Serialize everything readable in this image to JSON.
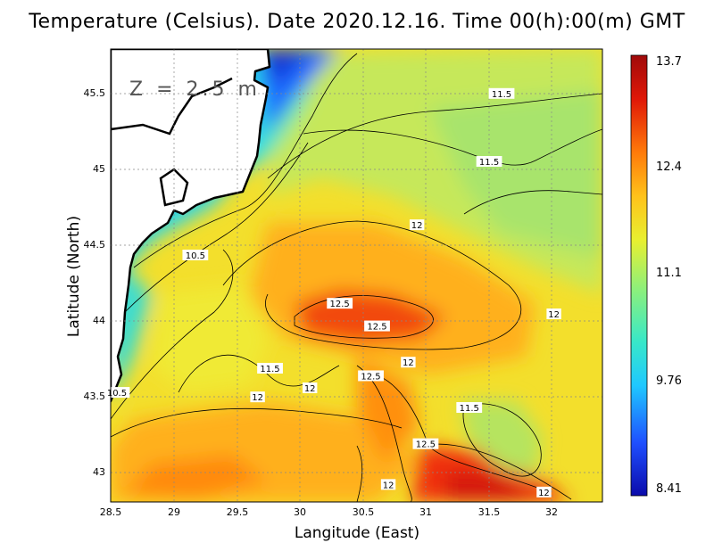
{
  "title": "Temperature (Celsius). Date 2020.12.16. Time 00(h):00(m) GMT",
  "depth_label": "Z = 2.5 m",
  "x_axis": {
    "label": "Langitude (East)",
    "ticks": [
      "28.5",
      "29",
      "29.5",
      "30",
      "30.5",
      "31",
      "31.5",
      "32"
    ]
  },
  "y_axis": {
    "label": "Latitude (North)",
    "ticks": [
      "45.5",
      "45",
      "44.5",
      "44",
      "43.5",
      "43"
    ]
  },
  "colorbar": {
    "ticks": [
      "13.7",
      "12.4",
      "11.1",
      "9.76",
      "8.41"
    ],
    "colors": [
      "#0b0bab",
      "#1f4fff",
      "#1fc8ff",
      "#38e8c8",
      "#8ef07a",
      "#e8f030",
      "#ffc21a",
      "#ff7a0a",
      "#e01808",
      "#a00a0a"
    ]
  },
  "contour_labels": [
    {
      "text": "11.5",
      "lon": 31.64,
      "lat": 45.5
    },
    {
      "text": "11.5",
      "lon": 31.54,
      "lat": 45.05
    },
    {
      "text": "12",
      "lon": 30.96,
      "lat": 44.63
    },
    {
      "text": "10.5",
      "lon": 29.18,
      "lat": 44.43
    },
    {
      "text": "12.5",
      "lon": 30.34,
      "lat": 44.11
    },
    {
      "text": "12",
      "lon": 32.06,
      "lat": 44.04
    },
    {
      "text": "12.5",
      "lon": 30.64,
      "lat": 43.96
    },
    {
      "text": "12",
      "lon": 30.89,
      "lat": 43.72
    },
    {
      "text": "11.5",
      "lon": 29.78,
      "lat": 43.68
    },
    {
      "text": "12.5",
      "lon": 30.59,
      "lat": 43.63
    },
    {
      "text": "12",
      "lon": 30.1,
      "lat": 43.55
    },
    {
      "text": "10.5",
      "lon": 28.55,
      "lat": 43.52
    },
    {
      "text": "12",
      "lon": 29.68,
      "lat": 43.49
    },
    {
      "text": "11.5",
      "lon": 31.38,
      "lat": 43.42
    },
    {
      "text": "12.5",
      "lon": 31.03,
      "lat": 43.18
    },
    {
      "text": "12",
      "lon": 30.73,
      "lat": 42.91
    },
    {
      "text": "12",
      "lon": 31.98,
      "lat": 42.86
    }
  ],
  "map_extent": {
    "lon": [
      28.5,
      32.45
    ],
    "lat": [
      42.8,
      45.8
    ]
  }
}
